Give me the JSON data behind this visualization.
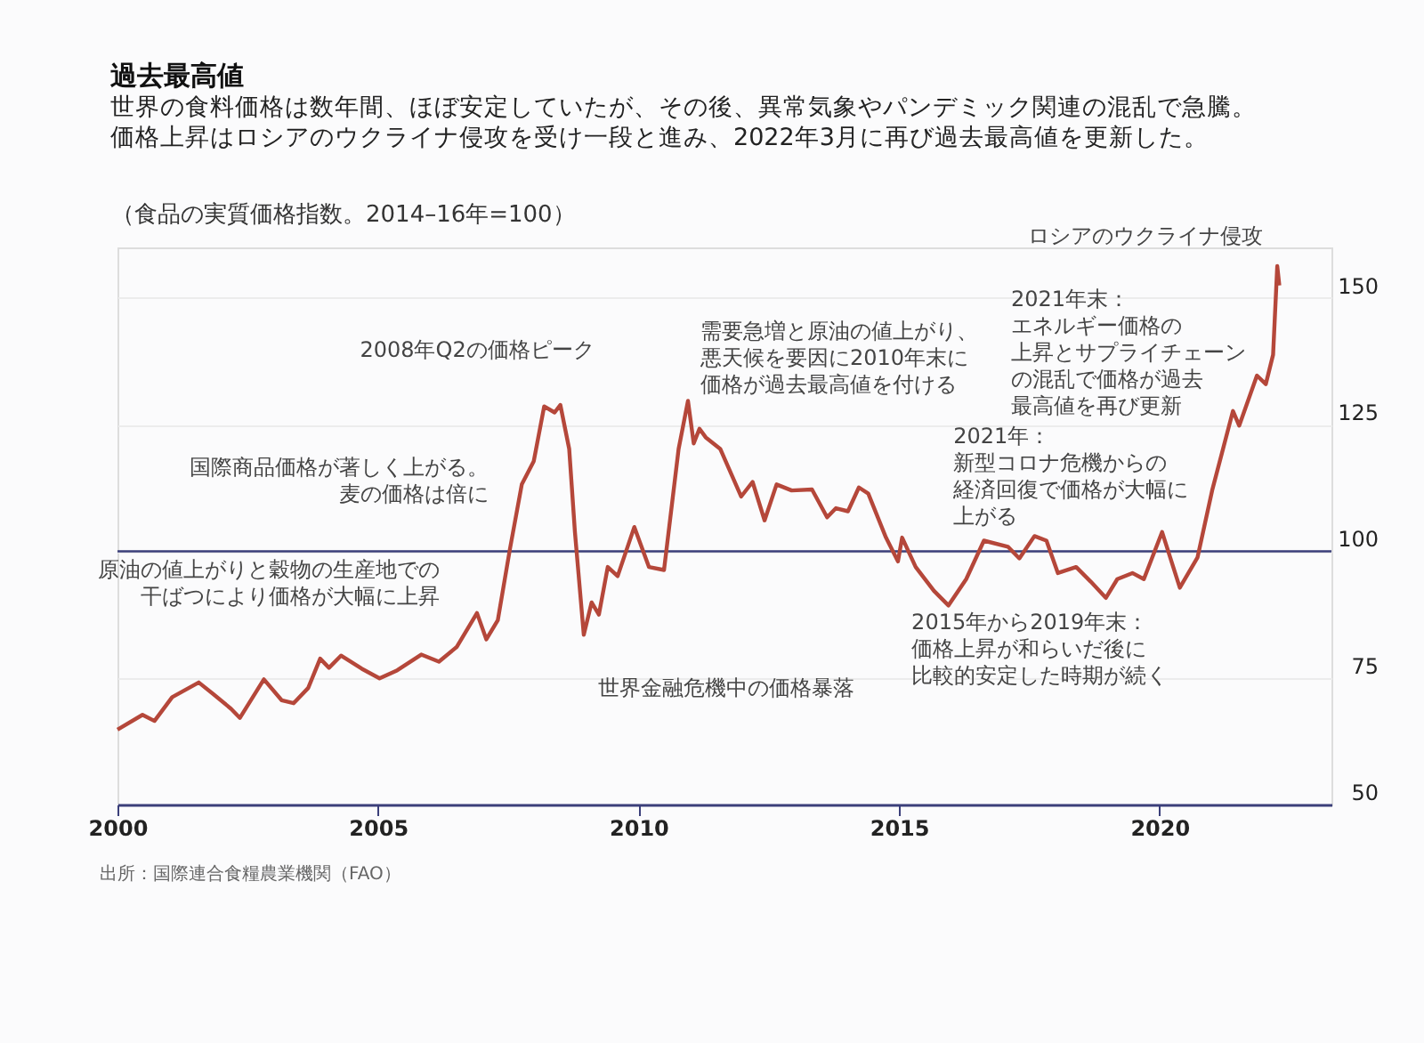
{
  "chart_data": {
    "type": "line",
    "title": "過去最高値",
    "subtitle": "世界の食料価格は数年間、ほぼ安定していたが、その後、異常気象やパンデミック関連の混乱で急騰。価格上昇はロシアのウクライナ侵攻を受け一段と進み、2022年3月に再び過去最高値を更新した。",
    "ylabel": "（食品の実質価格指数。2014–16年=100）",
    "x": [
      2000.0,
      2000.48,
      2000.71,
      2001.05,
      2001.56,
      2001.84,
      2002.18,
      2002.35,
      2002.81,
      2003.15,
      2003.38,
      2003.66,
      2003.89,
      2004.06,
      2004.29,
      2004.69,
      2005.03,
      2005.37,
      2005.83,
      2006.17,
      2006.51,
      2006.9,
      2007.08,
      2007.3,
      2007.53,
      2007.76,
      2007.99,
      2008.19,
      2008.39,
      2008.5,
      2008.67,
      2008.78,
      2008.95,
      2009.1,
      2009.24,
      2009.41,
      2009.6,
      2009.92,
      2010.2,
      2010.49,
      2010.77,
      2010.95,
      2011.06,
      2011.17,
      2011.29,
      2011.57,
      2011.97,
      2012.19,
      2012.42,
      2012.65,
      2012.94,
      2013.33,
      2013.62,
      2013.79,
      2014.02,
      2014.23,
      2014.41,
      2014.75,
      2014.98,
      2015.06,
      2015.32,
      2015.67,
      2015.95,
      2016.29,
      2016.63,
      2017.09,
      2017.31,
      2017.6,
      2017.83,
      2018.05,
      2018.4,
      2018.68,
      2018.97,
      2019.19,
      2019.48,
      2019.7,
      2020.05,
      2020.39,
      2020.73,
      2021.01,
      2021.41,
      2021.53,
      2021.87,
      2022.04,
      2022.18,
      2022.26,
      2022.3
    ],
    "series": [
      {
        "color": "#b5473a",
        "values": [
          64.8,
          67.7,
          66.5,
          71.2,
          74.1,
          71.8,
          68.9,
          67.1,
          74.7,
          70.6,
          70.0,
          73.0,
          78.8,
          77.0,
          79.4,
          76.8,
          74.9,
          76.5,
          79.6,
          78.2,
          81.1,
          87.8,
          82.6,
          86.4,
          100.3,
          113.2,
          117.8,
          128.6,
          127.4,
          128.9,
          120.2,
          103.8,
          83.5,
          89.9,
          87.5,
          96.9,
          95.1,
          104.8,
          96.9,
          96.3,
          120.2,
          129.7,
          121.3,
          124.2,
          122.5,
          120.2,
          110.8,
          113.7,
          106.1,
          113.2,
          112.0,
          112.2,
          106.7,
          108.5,
          107.9,
          112.6,
          111.4,
          102.7,
          98.0,
          102.7,
          96.9,
          92.2,
          89.3,
          94.5,
          102.1,
          100.9,
          98.6,
          103.0,
          102.1,
          95.7,
          96.9,
          94.0,
          90.8,
          94.5,
          95.7,
          94.5,
          103.8,
          92.8,
          98.8,
          112.0,
          127.7,
          124.8,
          134.7,
          133.0,
          138.8,
          156.3,
          152.5
        ]
      }
    ],
    "xlim": [
      2000,
      2023.3
    ],
    "xticks": [
      2000,
      2005,
      2010,
      2015,
      2020
    ],
    "ylim": [
      50,
      160
    ],
    "yticks": [
      50,
      75,
      100,
      125,
      150
    ],
    "grid": "y",
    "ref_lines": [
      {
        "axis": "y",
        "value": 100,
        "color": "#3b3f7a"
      }
    ],
    "annotations": [
      {
        "text": "原油の値上がりと穀物の生産地での干ばつにより価格が大幅に上昇",
        "x": 2006.6,
        "y": 81
      },
      {
        "text": "国際商品価格が著しく上がる。麦の価格は倍に",
        "x": 2007.7,
        "y": 112
      },
      {
        "text": "2008年Q2の価格ピーク",
        "x": 2008.2,
        "y": 128.6
      },
      {
        "text": "世界金融危機中の価格暴落",
        "x": 2008.95,
        "y": 83.5
      },
      {
        "text": "需要急増と原油の値上がり、悪天候を要因に2010年末に価格が過去最高値を付ける",
        "x": 2010.95,
        "y": 129.7
      },
      {
        "text": "2015年から2019年末：価格上昇が和らいだ後に比較的安定した時期が続く",
        "x": 2015.0,
        "y": 98
      },
      {
        "text": "2021年：新型コロナ危機からの経済回復で価格が大幅に上がる",
        "x": 2021.1,
        "y": 114
      },
      {
        "text": "2021年末：エネルギー価格の上昇とサプライチェーンの混乱で価格が過去最高値を再び更新",
        "x": 2021.9,
        "y": 134
      },
      {
        "text": "ロシアのウクライナ侵攻",
        "x": 2022.26,
        "y": 156
      },
      "出所：国際連合食糧農業機関（FAO）"
    ]
  }
}
